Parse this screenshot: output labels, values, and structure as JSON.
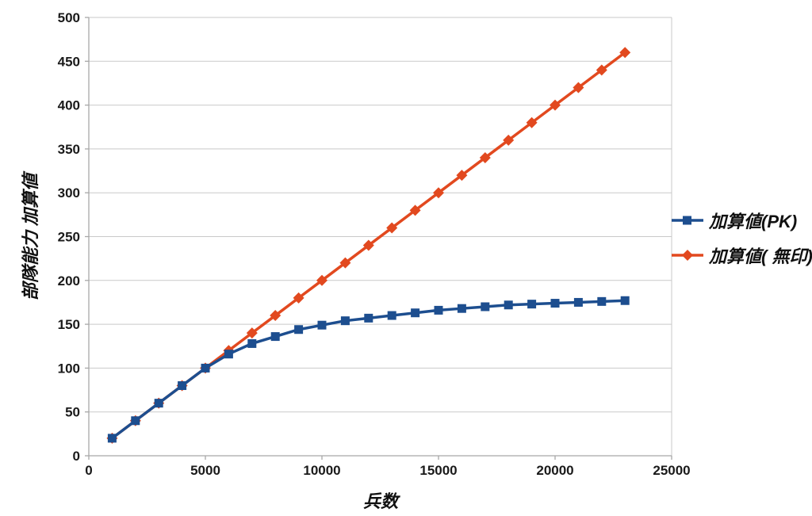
{
  "colors": {
    "background": "#ffffff",
    "grid": "#c9c9c9",
    "axis": "#a8a8a8",
    "text": "#1a1a1a"
  },
  "chart_data": {
    "type": "line",
    "title": "",
    "xlabel": "兵数",
    "ylabel": "部隊能力 加算値",
    "xlim": [
      0,
      25000
    ],
    "ylim": [
      0,
      500
    ],
    "x_ticks": [
      0,
      5000,
      10000,
      15000,
      20000,
      25000
    ],
    "y_tick_interval": 50,
    "grid": "horizontal",
    "legend_position": "right-outside",
    "x": [
      1000,
      2000,
      3000,
      4000,
      5000,
      6000,
      7000,
      8000,
      9000,
      10000,
      11000,
      12000,
      13000,
      14000,
      15000,
      16000,
      17000,
      18000,
      19000,
      20000,
      21000,
      22000,
      23000
    ],
    "series": [
      {
        "name": "加算値(PK)",
        "marker": "square",
        "color": "#1d4e8f",
        "values": [
          20,
          40,
          60,
          80,
          100,
          116,
          128,
          136,
          144,
          149,
          154,
          157,
          160,
          163,
          166,
          168,
          170,
          172,
          173,
          174,
          175,
          176,
          177
        ]
      },
      {
        "name": "加算値( 無印)",
        "marker": "diamond",
        "color": "#e2491f",
        "values": [
          20,
          40,
          60,
          80,
          100,
          120,
          140,
          160,
          180,
          200,
          220,
          240,
          260,
          280,
          300,
          320,
          340,
          360,
          380,
          400,
          420,
          440,
          460
        ]
      }
    ]
  }
}
